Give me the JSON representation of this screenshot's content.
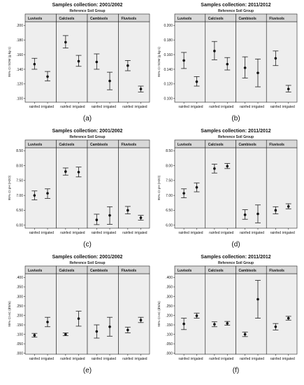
{
  "figure": {
    "group_header": "Reference Soil Group",
    "soil_groups": [
      "Luvisols",
      "Calcisols",
      "Cambisols",
      "Fluvisols"
    ],
    "treatments": [
      "rainfed",
      "irrigated"
    ]
  },
  "colors": {
    "panel_bg": "#eeeeee",
    "axes_frame": "#222222",
    "strip_bg": "#d8d8d8",
    "error_bar": "#222222",
    "point": "#111111"
  },
  "chart_data": [
    {
      "type": "scatter",
      "panel_label": "(a)",
      "title": "Samples collection: 2001/2002",
      "ylabel": "95% CI SOM (g kg-1)",
      "ylim": [
        0.095,
        0.205
      ],
      "yticks": [
        0.1,
        0.12,
        0.14,
        0.16,
        0.18,
        0.2
      ],
      "yticklabels": [
        ".100",
        ".120",
        ".140",
        ".160",
        ".180",
        ".200"
      ],
      "series": [
        {
          "facet": "Luvisols",
          "x": [
            "rainfed",
            "irrigated"
          ],
          "mean": [
            0.147,
            0.13
          ],
          "lower": [
            0.14,
            0.124
          ],
          "upper": [
            0.155,
            0.137
          ]
        },
        {
          "facet": "Calcisols",
          "x": [
            "rainfed",
            "irrigated"
          ],
          "mean": [
            0.177,
            0.151
          ],
          "lower": [
            0.169,
            0.144
          ],
          "upper": [
            0.186,
            0.159
          ]
        },
        {
          "facet": "Cambisols",
          "x": [
            "rainfed",
            "irrigated"
          ],
          "mean": [
            0.15,
            0.124
          ],
          "lower": [
            0.14,
            0.112
          ],
          "upper": [
            0.161,
            0.136
          ]
        },
        {
          "facet": "Fluvisols",
          "x": [
            "rainfed",
            "irrigated"
          ],
          "mean": [
            0.145,
            0.113
          ],
          "lower": [
            0.138,
            0.109
          ],
          "upper": [
            0.152,
            0.117
          ]
        }
      ]
    },
    {
      "type": "scatter",
      "panel_label": "(b)",
      "title": "Samples collection: 2011/2012",
      "ylabel": "95% CI SOM (g kg-1)",
      "ylim": [
        0.095,
        0.205
      ],
      "yticks": [
        0.1,
        0.12,
        0.14,
        0.16,
        0.18,
        0.2
      ],
      "yticklabels": [
        "0.100",
        "0.120",
        "0.140",
        "0.160",
        "0.180",
        "0.200"
      ],
      "series": [
        {
          "facet": "Luvisols",
          "x": [
            "rainfed",
            "irrigated"
          ],
          "mean": [
            0.152,
            0.123
          ],
          "lower": [
            0.141,
            0.117
          ],
          "upper": [
            0.163,
            0.13
          ]
        },
        {
          "facet": "Calcisols",
          "x": [
            "rainfed",
            "irrigated"
          ],
          "mean": [
            0.165,
            0.147
          ],
          "lower": [
            0.153,
            0.139
          ],
          "upper": [
            0.178,
            0.156
          ]
        },
        {
          "facet": "Cambisols",
          "x": [
            "rainfed",
            "irrigated"
          ],
          "mean": [
            0.142,
            0.135
          ],
          "lower": [
            0.128,
            0.116
          ],
          "upper": [
            0.157,
            0.154
          ]
        },
        {
          "facet": "Fluvisols",
          "x": [
            "rainfed",
            "irrigated"
          ],
          "mean": [
            0.155,
            0.113
          ],
          "lower": [
            0.145,
            0.109
          ],
          "upper": [
            0.165,
            0.118
          ]
        }
      ]
    },
    {
      "type": "scatter",
      "panel_label": "(c)",
      "title": "Samples collection: 2001/2002",
      "ylabel": "95% CI pH (H2O)",
      "ylim": [
        5.9,
        8.6
      ],
      "yticks": [
        6.0,
        6.5,
        7.0,
        7.5,
        8.0,
        8.5
      ],
      "yticklabels": [
        "6.00",
        "6.50",
        "7.00",
        "7.50",
        "8.00",
        "8.50"
      ],
      "series": [
        {
          "facet": "Luvisols",
          "x": [
            "rainfed",
            "irrigated"
          ],
          "mean": [
            7.0,
            7.07
          ],
          "lower": [
            6.85,
            6.9
          ],
          "upper": [
            7.15,
            7.22
          ]
        },
        {
          "facet": "Calcisols",
          "x": [
            "rainfed",
            "irrigated"
          ],
          "mean": [
            7.8,
            7.78
          ],
          "lower": [
            7.68,
            7.62
          ],
          "upper": [
            7.92,
            7.95
          ]
        },
        {
          "facet": "Cambisols",
          "x": [
            "rainfed",
            "irrigated"
          ],
          "mean": [
            6.18,
            6.33
          ],
          "lower": [
            6.02,
            6.03
          ],
          "upper": [
            6.37,
            6.62
          ]
        },
        {
          "facet": "Fluvisols",
          "x": [
            "rainfed",
            "irrigated"
          ],
          "mean": [
            6.5,
            6.25
          ],
          "lower": [
            6.38,
            6.17
          ],
          "upper": [
            6.63,
            6.33
          ]
        }
      ]
    },
    {
      "type": "scatter",
      "panel_label": "(d)",
      "title": "Samples collection: 2011/2012",
      "ylabel": "95% CI pH (H2O)",
      "ylim": [
        5.9,
        8.6
      ],
      "yticks": [
        6.0,
        6.5,
        7.0,
        7.5,
        8.0,
        8.5
      ],
      "yticklabels": [
        "6.00",
        "6.50",
        "7.00",
        "7.50",
        "8.00",
        "8.50"
      ],
      "series": [
        {
          "facet": "Luvisols",
          "x": [
            "rainfed",
            "irrigated"
          ],
          "mean": [
            7.07,
            7.27
          ],
          "lower": [
            6.92,
            7.12
          ],
          "upper": [
            7.22,
            7.42
          ]
        },
        {
          "facet": "Calcisols",
          "x": [
            "rainfed",
            "irrigated"
          ],
          "mean": [
            7.9,
            7.98
          ],
          "lower": [
            7.75,
            7.9
          ],
          "upper": [
            8.05,
            8.07
          ]
        },
        {
          "facet": "Cambisols",
          "x": [
            "rainfed",
            "irrigated"
          ],
          "mean": [
            6.35,
            6.38
          ],
          "lower": [
            6.2,
            6.08
          ],
          "upper": [
            6.52,
            6.68
          ]
        },
        {
          "facet": "Fluvisols",
          "x": [
            "rainfed",
            "irrigated"
          ],
          "mean": [
            6.5,
            6.63
          ],
          "lower": [
            6.38,
            6.55
          ],
          "upper": [
            6.62,
            6.72
          ]
        }
      ]
    },
    {
      "type": "scatter",
      "panel_label": "(e)",
      "title": "Samples collection: 2001/2002",
      "ylabel": "95% CI eC (dS/m)",
      "ylim": [
        -0.005,
        0.42
      ],
      "yticks": [
        0.0,
        0.05,
        0.1,
        0.15,
        0.2,
        0.25,
        0.3,
        0.35,
        0.4
      ],
      "yticklabels": [
        ".000",
        ".050",
        ".100",
        ".150",
        ".200",
        ".250",
        ".300",
        ".350",
        ".400"
      ],
      "series": [
        {
          "facet": "Luvisols",
          "x": [
            "rainfed",
            "irrigated"
          ],
          "mean": [
            0.095,
            0.165
          ],
          "lower": [
            0.085,
            0.14
          ],
          "upper": [
            0.105,
            0.19
          ]
        },
        {
          "facet": "Calcisols",
          "x": [
            "rainfed",
            "irrigated"
          ],
          "mean": [
            0.1,
            0.183
          ],
          "lower": [
            0.093,
            0.143
          ],
          "upper": [
            0.107,
            0.222
          ]
        },
        {
          "facet": "Cambisols",
          "x": [
            "rainfed",
            "irrigated"
          ],
          "mean": [
            0.115,
            0.14
          ],
          "lower": [
            0.08,
            0.09
          ],
          "upper": [
            0.15,
            0.19
          ]
        },
        {
          "facet": "Fluvisols",
          "x": [
            "rainfed",
            "irrigated"
          ],
          "mean": [
            0.123,
            0.175
          ],
          "lower": [
            0.108,
            0.162
          ],
          "upper": [
            0.138,
            0.19
          ]
        }
      ]
    },
    {
      "type": "scatter",
      "panel_label": "(f)",
      "title": "Samples collection: 2011/2012",
      "ylabel": "95% CI eC (dS/m)",
      "ylim": [
        -0.005,
        0.42
      ],
      "yticks": [
        0.0,
        0.05,
        0.1,
        0.15,
        0.2,
        0.25,
        0.3,
        0.35,
        0.4
      ],
      "yticklabels": [
        ".000",
        ".050",
        ".100",
        ".150",
        ".200",
        ".250",
        ".300",
        ".350",
        ".400"
      ],
      "series": [
        {
          "facet": "Luvisols",
          "x": [
            "rainfed",
            "irrigated"
          ],
          "mean": [
            0.155,
            0.198
          ],
          "lower": [
            0.125,
            0.185
          ],
          "upper": [
            0.185,
            0.212
          ]
        },
        {
          "facet": "Calcisols",
          "x": [
            "rainfed",
            "irrigated"
          ],
          "mean": [
            0.153,
            0.158
          ],
          "lower": [
            0.14,
            0.148
          ],
          "upper": [
            0.166,
            0.168
          ]
        },
        {
          "facet": "Cambisols",
          "x": [
            "rainfed",
            "irrigated"
          ],
          "mean": [
            0.1,
            0.285
          ],
          "lower": [
            0.088,
            0.185
          ],
          "upper": [
            0.112,
            0.385
          ]
        },
        {
          "facet": "Fluvisols",
          "x": [
            "rainfed",
            "irrigated"
          ],
          "mean": [
            0.14,
            0.185
          ],
          "lower": [
            0.123,
            0.175
          ],
          "upper": [
            0.157,
            0.195
          ]
        }
      ]
    }
  ]
}
